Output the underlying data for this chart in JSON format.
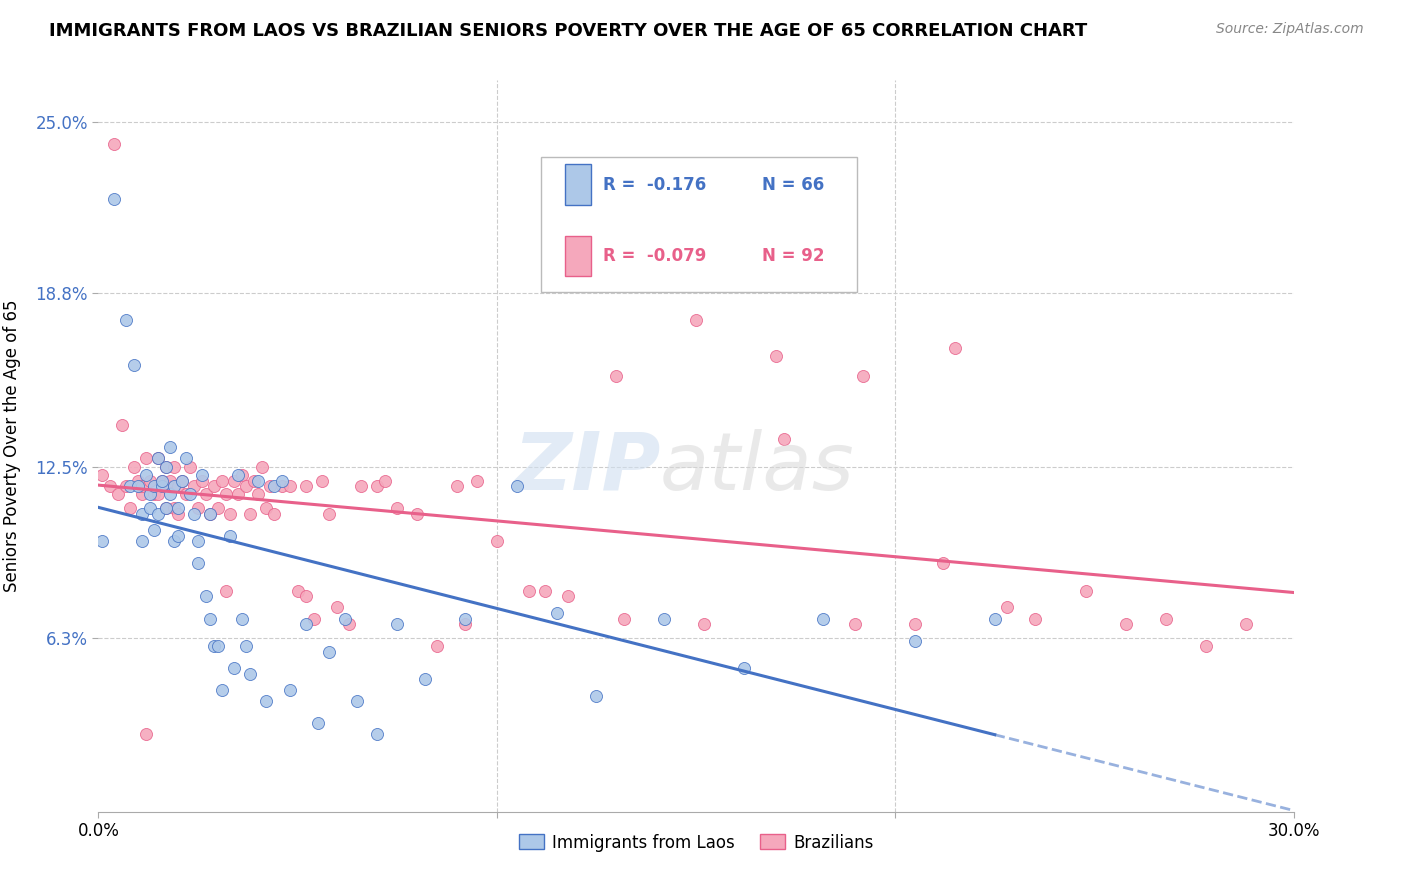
{
  "title": "IMMIGRANTS FROM LAOS VS BRAZILIAN SENIORS POVERTY OVER THE AGE OF 65 CORRELATION CHART",
  "source": "Source: ZipAtlas.com",
  "ylabel": "Seniors Poverty Over the Age of 65",
  "xlim": [
    0.0,
    0.3
  ],
  "ylim": [
    0.0,
    0.265
  ],
  "yticks": [
    0.063,
    0.125,
    0.188,
    0.25
  ],
  "ytick_labels": [
    "6.3%",
    "12.5%",
    "18.8%",
    "25.0%"
  ],
  "color_laos": "#adc8e8",
  "color_brazil": "#f5a8bc",
  "color_laos_line": "#4472c4",
  "color_brazil_line": "#e8608a",
  "laos_x": [
    0.001,
    0.004,
    0.007,
    0.008,
    0.009,
    0.01,
    0.011,
    0.011,
    0.012,
    0.013,
    0.013,
    0.014,
    0.014,
    0.015,
    0.015,
    0.016,
    0.016,
    0.017,
    0.017,
    0.018,
    0.018,
    0.019,
    0.019,
    0.02,
    0.02,
    0.021,
    0.022,
    0.023,
    0.024,
    0.025,
    0.025,
    0.026,
    0.027,
    0.028,
    0.028,
    0.029,
    0.03,
    0.031,
    0.033,
    0.034,
    0.035,
    0.036,
    0.037,
    0.038,
    0.04,
    0.042,
    0.044,
    0.046,
    0.048,
    0.052,
    0.055,
    0.058,
    0.062,
    0.065,
    0.07,
    0.075,
    0.082,
    0.092,
    0.105,
    0.115,
    0.125,
    0.142,
    0.162,
    0.182,
    0.205,
    0.225
  ],
  "laos_y": [
    0.098,
    0.222,
    0.178,
    0.118,
    0.162,
    0.118,
    0.108,
    0.098,
    0.122,
    0.115,
    0.11,
    0.102,
    0.118,
    0.108,
    0.128,
    0.118,
    0.12,
    0.11,
    0.125,
    0.115,
    0.132,
    0.098,
    0.118,
    0.11,
    0.1,
    0.12,
    0.128,
    0.115,
    0.108,
    0.098,
    0.09,
    0.122,
    0.078,
    0.07,
    0.108,
    0.06,
    0.06,
    0.044,
    0.1,
    0.052,
    0.122,
    0.07,
    0.06,
    0.05,
    0.12,
    0.04,
    0.118,
    0.12,
    0.044,
    0.068,
    0.032,
    0.058,
    0.07,
    0.04,
    0.028,
    0.068,
    0.048,
    0.07,
    0.118,
    0.072,
    0.042,
    0.07,
    0.052,
    0.07,
    0.062,
    0.07
  ],
  "brazil_x": [
    0.001,
    0.003,
    0.004,
    0.005,
    0.006,
    0.007,
    0.008,
    0.009,
    0.01,
    0.011,
    0.011,
    0.012,
    0.013,
    0.014,
    0.015,
    0.015,
    0.016,
    0.017,
    0.017,
    0.018,
    0.018,
    0.019,
    0.019,
    0.02,
    0.02,
    0.021,
    0.022,
    0.023,
    0.024,
    0.025,
    0.026,
    0.027,
    0.028,
    0.029,
    0.03,
    0.031,
    0.032,
    0.033,
    0.034,
    0.035,
    0.036,
    0.037,
    0.038,
    0.039,
    0.04,
    0.041,
    0.042,
    0.043,
    0.044,
    0.046,
    0.048,
    0.05,
    0.052,
    0.054,
    0.056,
    0.058,
    0.06,
    0.063,
    0.066,
    0.07,
    0.075,
    0.08,
    0.085,
    0.09,
    0.095,
    0.1,
    0.108,
    0.118,
    0.13,
    0.15,
    0.17,
    0.19,
    0.205,
    0.215,
    0.235,
    0.248,
    0.258,
    0.268,
    0.278,
    0.288,
    0.228,
    0.212,
    0.192,
    0.172,
    0.152,
    0.132,
    0.112,
    0.092,
    0.072,
    0.052,
    0.032,
    0.012
  ],
  "brazil_y": [
    0.122,
    0.118,
    0.242,
    0.115,
    0.14,
    0.118,
    0.11,
    0.125,
    0.12,
    0.115,
    0.118,
    0.128,
    0.12,
    0.115,
    0.128,
    0.115,
    0.12,
    0.125,
    0.11,
    0.118,
    0.12,
    0.11,
    0.125,
    0.118,
    0.108,
    0.12,
    0.115,
    0.125,
    0.118,
    0.11,
    0.12,
    0.115,
    0.108,
    0.118,
    0.11,
    0.12,
    0.115,
    0.108,
    0.12,
    0.115,
    0.122,
    0.118,
    0.108,
    0.12,
    0.115,
    0.125,
    0.11,
    0.118,
    0.108,
    0.118,
    0.118,
    0.08,
    0.078,
    0.07,
    0.12,
    0.108,
    0.074,
    0.068,
    0.118,
    0.118,
    0.11,
    0.108,
    0.06,
    0.118,
    0.12,
    0.098,
    0.08,
    0.078,
    0.158,
    0.178,
    0.165,
    0.068,
    0.068,
    0.168,
    0.07,
    0.08,
    0.068,
    0.07,
    0.06,
    0.068,
    0.074,
    0.09,
    0.158,
    0.135,
    0.068,
    0.07,
    0.08,
    0.068,
    0.12,
    0.118,
    0.08,
    0.028
  ]
}
